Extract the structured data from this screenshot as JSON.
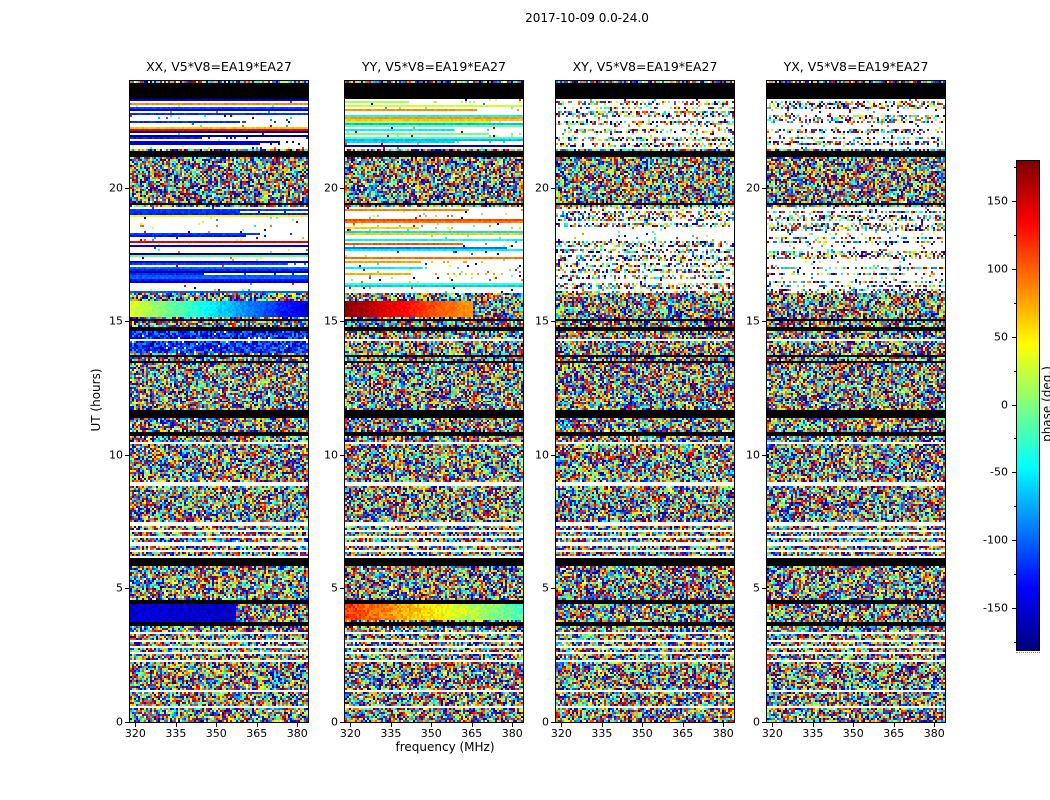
{
  "chart_data": {
    "type": "heatmap",
    "title": "2017-10-09 0.0-24.0",
    "xlabel": "frequency (MHz)",
    "ylabel": "UT (hours)",
    "x_ticks": [
      320,
      335,
      350,
      365,
      380
    ],
    "x_range": [
      318,
      384
    ],
    "y_ticks": [
      0,
      5,
      10,
      15,
      20
    ],
    "y_range": [
      0,
      24
    ],
    "grid": false,
    "colorbar": {
      "label": "phase (deg.)",
      "ticks": [
        150,
        100,
        50,
        0,
        -50,
        -100,
        -150
      ],
      "range": [
        -180,
        180
      ],
      "colormap": "jet"
    },
    "description": "Visibility phase vs frequency (318-384 MHz) and UT (0-24 h) for baseline V5*V8=EA19*EA27 in four polarization products XX, YY, XY, YX. Content is mostly random phase noise (full -180..180 deg speckle) broken by horizontal black scan-boundary lines, thin white gap rows, sparse streaky low-signal periods near 16-19.3h and 21.45-23.35h, and smooth coherent calibrator bands near 15.5h and 4h (green/blue in XX, red/orange/yellow in YY; XY and YX stay noise-like).",
    "panels": [
      {
        "title": "XX, V5*V8=EA19*EA27",
        "seed": 11,
        "sparse_mode": "coherent",
        "sparse_phase_range": [
          -178,
          -95
        ],
        "bands": [
          {
            "t": [
              15.2,
              15.78
            ],
            "phase": [
              35,
              -150
            ],
            "jitter": 22
          },
          {
            "t": [
              3.75,
              4.4
            ],
            "phase": [
              -148,
              -162
            ],
            "jitter": 30,
            "noise_after": 0.6
          }
        ],
        "tint_regions": [
          {
            "t": [
              13.8,
              14.68
            ],
            "phase": [
              -180,
              -70
            ]
          }
        ]
      },
      {
        "title": "YY, V5*V8=EA19*EA27",
        "seed": 23,
        "sparse_mode": "coherent",
        "sparse_phase_range": [
          -70,
          115
        ],
        "bands": [
          {
            "t": [
              15.2,
              15.78
            ],
            "phase": [
              178,
              40
            ],
            "jitter": 18,
            "noise_after": 0.72
          },
          {
            "t": [
              3.85,
              4.4
            ],
            "phase": [
              120,
              -20
            ],
            "jitter": 40
          }
        ],
        "tint_regions": []
      },
      {
        "title": "XY, V5*V8=EA19*EA27",
        "seed": 37,
        "sparse_mode": "speckle",
        "sparse_phase_range": [
          -180,
          180
        ],
        "bands": [],
        "tint_regions": []
      },
      {
        "title": "YX, V5*V8=EA19*EA27",
        "seed": 41,
        "sparse_mode": "speckle",
        "sparse_phase_range": [
          -180,
          180
        ],
        "bands": [],
        "tint_regions": []
      }
    ],
    "time_structure": {
      "black_lines": [
        23.85,
        23.7,
        23.55,
        23.4,
        21.35,
        21.22,
        19.4,
        15.08,
        14.72,
        13.72,
        13.5,
        11.58,
        11.42,
        10.78,
        6.05,
        5.92,
        4.5,
        3.68
      ],
      "white_lines": [
        14.3,
        10.4,
        8.9,
        7.4,
        7.15,
        6.9,
        6.65,
        6.4,
        6.15,
        3.3,
        3.05,
        2.8,
        2.55,
        2.3,
        1.15,
        0.55
      ],
      "sparse_regions": [
        [
          16.05,
          19.3
        ],
        [
          21.45,
          23.35
        ]
      ]
    }
  }
}
